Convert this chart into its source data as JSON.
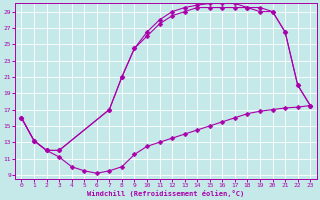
{
  "xlabel": "Windchill (Refroidissement éolien,°C)",
  "bg_color": "#c5e8e8",
  "grid_color": "#ffffff",
  "line_color": "#aa00aa",
  "xlim": [
    -0.5,
    23.5
  ],
  "ylim": [
    8.5,
    30.0
  ],
  "yticks": [
    9,
    11,
    13,
    15,
    17,
    19,
    21,
    23,
    25,
    27,
    29
  ],
  "xticks": [
    0,
    1,
    2,
    3,
    4,
    5,
    6,
    7,
    8,
    9,
    10,
    11,
    12,
    13,
    14,
    15,
    16,
    17,
    18,
    19,
    20,
    21,
    22,
    23
  ],
  "curve1_x": [
    0,
    1,
    2,
    3,
    4,
    5,
    6,
    7,
    8,
    9,
    10,
    11,
    12,
    13,
    14,
    15,
    16,
    17,
    18,
    19,
    20,
    21,
    22,
    23
  ],
  "curve1_y": [
    16,
    13.2,
    12.0,
    11.2,
    10.0,
    9.5,
    9.2,
    9.5,
    10.0,
    11.5,
    12.5,
    13.0,
    13.5,
    14.0,
    14.5,
    15.0,
    15.5,
    16.0,
    16.5,
    16.8,
    17.0,
    17.2,
    17.3,
    17.5
  ],
  "curve2_x": [
    0,
    1,
    2,
    3,
    7,
    8,
    9,
    10,
    11,
    12,
    13,
    14,
    15,
    16,
    17,
    18,
    19,
    20,
    21,
    22,
    23
  ],
  "curve2_y": [
    16,
    13.2,
    12.0,
    12.0,
    17.0,
    21.0,
    24.5,
    26.0,
    27.5,
    28.5,
    29.0,
    29.5,
    29.5,
    29.5,
    29.5,
    29.5,
    29.5,
    29.0,
    26.5,
    20.0,
    17.5
  ],
  "curve3_x": [
    0,
    1,
    2,
    3,
    7,
    8,
    9,
    10,
    11,
    12,
    13,
    14,
    15,
    16,
    17,
    18,
    19,
    20,
    21,
    22,
    23
  ],
  "curve3_y": [
    16,
    13.2,
    12.0,
    12.0,
    17.0,
    21.0,
    24.5,
    26.5,
    28.0,
    29.0,
    29.5,
    29.8,
    30.0,
    30.0,
    30.0,
    29.5,
    29.0,
    29.0,
    26.5,
    20.0,
    17.5
  ]
}
